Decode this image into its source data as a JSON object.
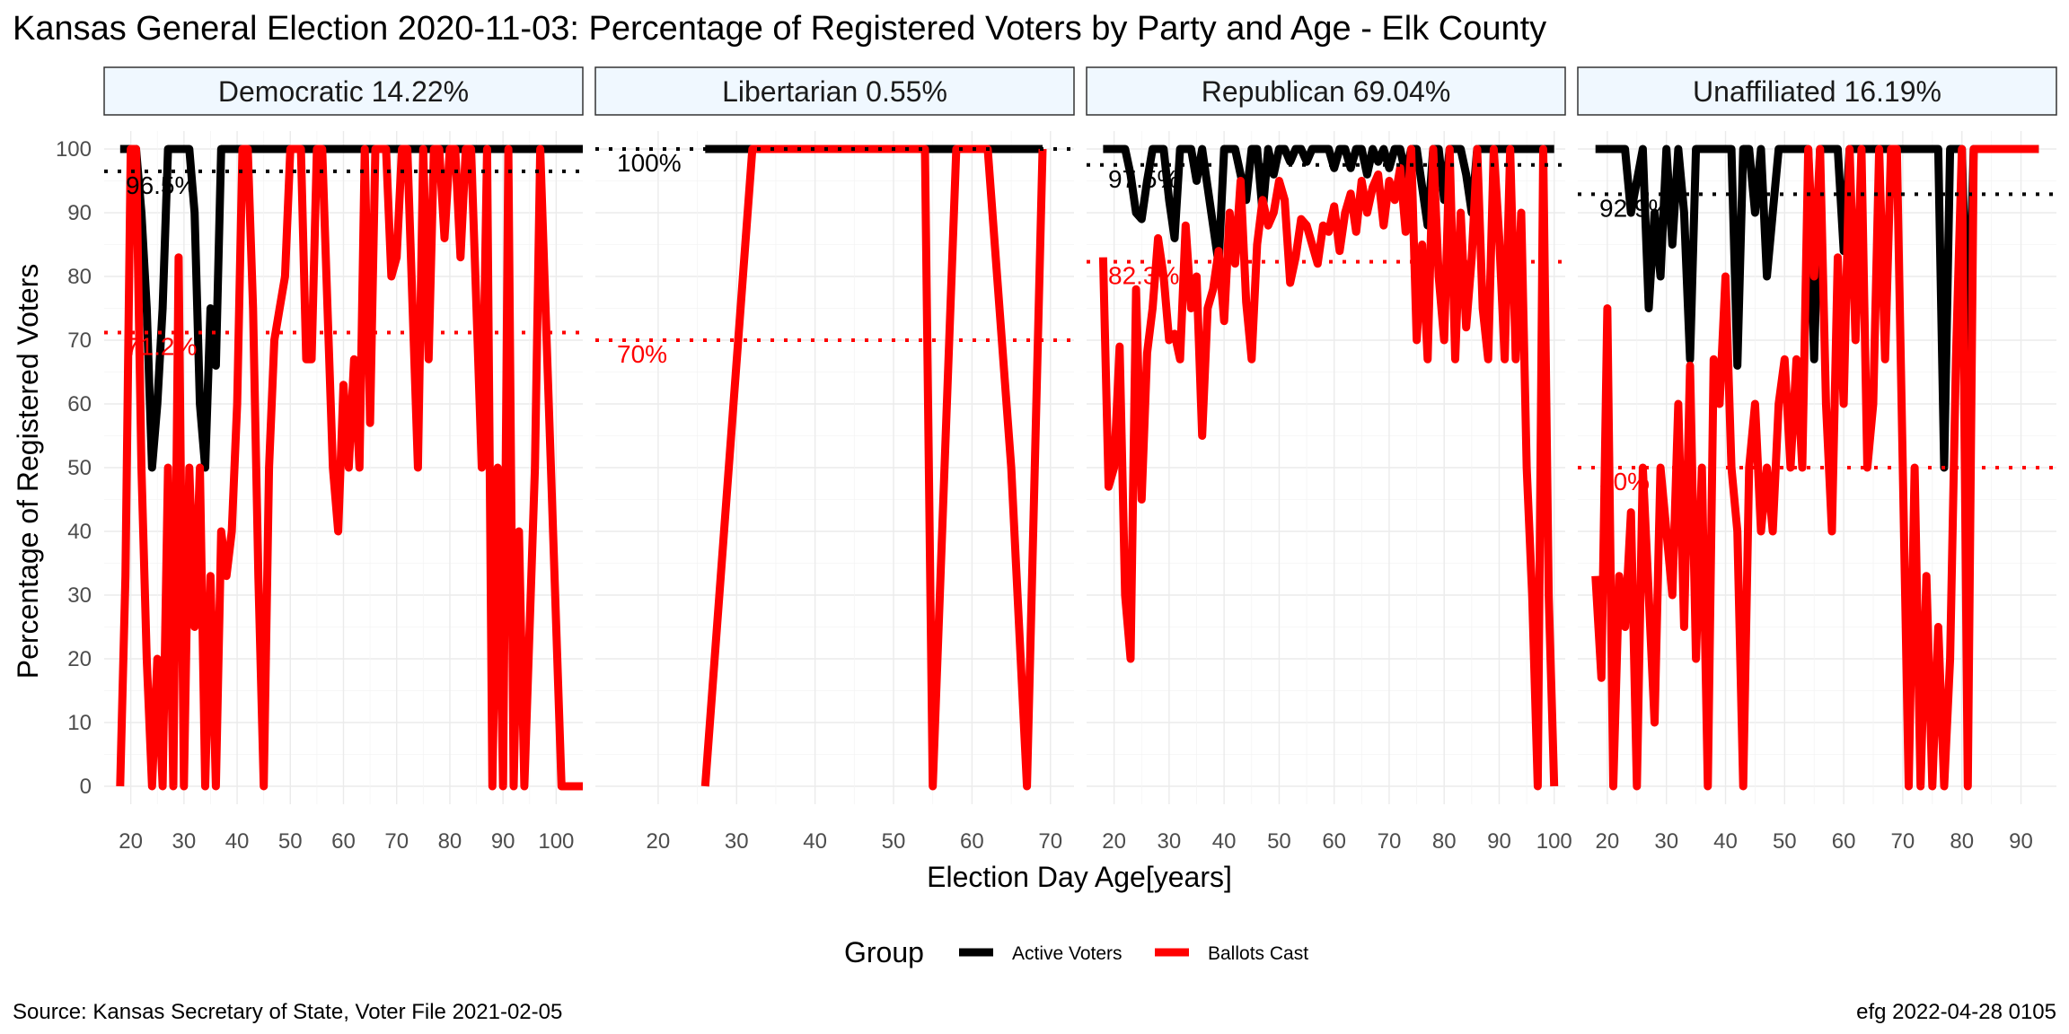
{
  "title": "Kansas General Election 2020-11-03:  Percentage of Registered Voters by Party and Age - Elk County",
  "caption_left": "Source:  Kansas Secretary of State, Voter File  2021-02-05",
  "caption_right": "efg 2022-04-28 0105",
  "colors": {
    "active": "#000000",
    "ballots": "#ff0000",
    "strip_fill": "#f0f8ff",
    "grid": "#ebebeb"
  },
  "chart_data": {
    "type": "line",
    "xlabel": "Election Day Age[years]",
    "ylabel": "Percentage of Registered Voters",
    "ylim": [
      0,
      100
    ],
    "yticks": [
      0,
      10,
      20,
      30,
      40,
      50,
      60,
      70,
      80,
      90,
      100
    ],
    "grid": true,
    "legend": {
      "title": "Group",
      "position": "bottom",
      "entries": [
        "Active Voters",
        "Ballots Cast"
      ]
    },
    "panels": [
      {
        "label": "Democratic 14.22%",
        "xlim": [
          15,
          105
        ],
        "xticks": [
          20,
          30,
          40,
          50,
          60,
          70,
          80,
          90,
          100
        ],
        "active_mean": 96.5,
        "active_mean_label": "96.5%",
        "ballots_mean": 71.2,
        "ballots_mean_label": "71.2%",
        "active_x": [
          18,
          19,
          20,
          21,
          22,
          23,
          24,
          25,
          26,
          27,
          28,
          29,
          30,
          31,
          32,
          33,
          34,
          35,
          36,
          37,
          38,
          39,
          40,
          41,
          42,
          43,
          44,
          45,
          46,
          47,
          48,
          49,
          50,
          51,
          52,
          53,
          54,
          55,
          56,
          57,
          58,
          59,
          60,
          61,
          62,
          63,
          64,
          65,
          66,
          67,
          68,
          69,
          70,
          71,
          72,
          73,
          74,
          75,
          76,
          77,
          78,
          79,
          80,
          81,
          82,
          83,
          84,
          85,
          86,
          87,
          88,
          89,
          90,
          91,
          92,
          93,
          94,
          95,
          96,
          97,
          98,
          99,
          100,
          101,
          102,
          103,
          104,
          105
        ],
        "active_y": [
          100,
          100,
          100,
          100,
          90,
          75,
          50,
          60,
          75,
          100,
          100,
          100,
          100,
          100,
          90,
          60,
          50,
          75,
          66,
          100,
          100,
          100,
          100,
          100,
          100,
          100,
          100,
          100,
          100,
          100,
          100,
          100,
          100,
          100,
          100,
          100,
          100,
          100,
          100,
          100,
          100,
          100,
          100,
          100,
          100,
          100,
          100,
          100,
          100,
          100,
          100,
          100,
          100,
          100,
          100,
          100,
          100,
          100,
          100,
          100,
          100,
          100,
          100,
          100,
          100,
          100,
          100,
          100,
          100,
          100,
          100,
          100,
          100,
          100,
          100,
          100,
          100,
          100,
          100,
          100,
          100,
          100,
          100,
          100,
          100,
          100,
          100,
          100
        ],
        "ballots_x": [
          18,
          19,
          20,
          21,
          22,
          23,
          24,
          25,
          26,
          27,
          28,
          29,
          30,
          31,
          32,
          33,
          34,
          35,
          36,
          37,
          38,
          39,
          40,
          41,
          42,
          43,
          44,
          45,
          46,
          47,
          48,
          49,
          50,
          51,
          52,
          53,
          54,
          55,
          56,
          57,
          58,
          59,
          60,
          61,
          62,
          63,
          64,
          65,
          66,
          67,
          68,
          69,
          70,
          71,
          72,
          73,
          74,
          75,
          76,
          77,
          78,
          79,
          80,
          81,
          82,
          83,
          84,
          85,
          86,
          87,
          88,
          89,
          90,
          91,
          92,
          93,
          94,
          95,
          96,
          97,
          98,
          99,
          100,
          101,
          102,
          103,
          104,
          105
        ],
        "ballots_y": [
          0,
          33,
          100,
          100,
          50,
          20,
          0,
          20,
          0,
          50,
          0,
          83,
          0,
          50,
          25,
          50,
          0,
          33,
          0,
          40,
          33,
          40,
          60,
          100,
          100,
          75,
          33,
          0,
          50,
          70,
          75,
          80,
          100,
          100,
          100,
          67,
          67,
          100,
          100,
          75,
          50,
          40,
          63,
          50,
          67,
          50,
          100,
          57,
          100,
          100,
          100,
          80,
          83,
          100,
          100,
          75,
          50,
          100,
          67,
          100,
          100,
          86,
          100,
          100,
          83,
          100,
          100,
          75,
          50,
          100,
          0,
          50,
          0,
          100,
          0,
          40,
          0,
          25,
          50,
          100,
          75,
          50,
          25,
          0,
          0,
          0,
          0,
          0
        ]
      },
      {
        "label": "Libertarian 0.55%",
        "xlim": [
          12,
          73
        ],
        "xticks": [
          20,
          30,
          40,
          50,
          60,
          70
        ],
        "active_mean": 100,
        "active_mean_label": "100%",
        "ballots_mean": 70,
        "ballots_mean_label": "70%",
        "active_x": [
          26,
          30,
          34,
          40,
          50,
          55,
          58,
          60,
          62,
          66,
          67,
          69
        ],
        "active_y": [
          100,
          100,
          100,
          100,
          100,
          100,
          100,
          100,
          100,
          100,
          100,
          100
        ],
        "ballots_x": [
          26,
          32,
          50,
          54,
          55,
          58,
          60,
          62,
          65,
          67,
          69
        ],
        "ballots_y": [
          0,
          100,
          100,
          100,
          0,
          100,
          100,
          100,
          50,
          0,
          100
        ]
      },
      {
        "label": "Republican 69.04%",
        "xlim": [
          15,
          102
        ],
        "xticks": [
          20,
          30,
          40,
          50,
          60,
          70,
          80,
          90,
          100
        ],
        "active_mean": 97.5,
        "active_mean_label": "97.5%",
        "ballots_mean": 82.3,
        "ballots_mean_label": "82.3%",
        "active_x": [
          18,
          19,
          20,
          21,
          22,
          23,
          24,
          25,
          26,
          27,
          28,
          29,
          30,
          31,
          32,
          33,
          34,
          35,
          36,
          37,
          38,
          39,
          40,
          41,
          42,
          43,
          44,
          45,
          46,
          47,
          48,
          49,
          50,
          51,
          52,
          53,
          54,
          55,
          56,
          57,
          58,
          59,
          60,
          61,
          62,
          63,
          64,
          65,
          66,
          67,
          68,
          69,
          70,
          71,
          72,
          73,
          74,
          75,
          76,
          77,
          78,
          79,
          80,
          81,
          82,
          83,
          84,
          85,
          86,
          87,
          88,
          89,
          90,
          91,
          92,
          93,
          94,
          95,
          96,
          97,
          98,
          99,
          100
        ],
        "active_y": [
          100,
          100,
          100,
          100,
          100,
          96,
          90,
          89,
          95,
          100,
          100,
          100,
          92,
          86,
          100,
          100,
          100,
          95,
          100,
          94,
          88,
          82,
          100,
          100,
          100,
          96,
          92,
          100,
          100,
          90,
          100,
          96,
          100,
          100,
          98,
          100,
          100,
          98,
          100,
          100,
          100,
          100,
          97,
          100,
          100,
          97,
          100,
          100,
          96,
          100,
          98,
          100,
          97,
          100,
          100,
          96,
          100,
          100,
          94,
          88,
          100,
          100,
          92,
          100,
          100,
          100,
          96,
          90,
          100,
          100,
          100,
          100,
          100,
          100,
          100,
          100,
          100,
          100,
          100,
          100,
          100,
          100,
          100
        ],
        "ballots_x": [
          18,
          19,
          20,
          21,
          22,
          23,
          24,
          25,
          26,
          27,
          28,
          29,
          30,
          31,
          32,
          33,
          34,
          35,
          36,
          37,
          38,
          39,
          40,
          41,
          42,
          43,
          44,
          45,
          46,
          47,
          48,
          49,
          50,
          51,
          52,
          53,
          54,
          55,
          56,
          57,
          58,
          59,
          60,
          61,
          62,
          63,
          64,
          65,
          66,
          67,
          68,
          69,
          70,
          71,
          72,
          73,
          74,
          75,
          76,
          77,
          78,
          79,
          80,
          81,
          82,
          83,
          84,
          85,
          86,
          87,
          88,
          89,
          90,
          91,
          92,
          93,
          94,
          95,
          96,
          97,
          98,
          99,
          100
        ],
        "ballots_y": [
          83,
          47,
          50,
          69,
          30,
          20,
          78,
          45,
          68,
          75,
          86,
          80,
          70,
          71,
          67,
          88,
          75,
          80,
          55,
          75,
          78,
          84,
          73,
          90,
          82,
          95,
          76,
          67,
          85,
          92,
          88,
          90,
          95,
          92,
          79,
          83,
          89,
          88,
          85,
          82,
          88,
          87,
          91,
          84,
          90,
          93,
          87,
          95,
          90,
          94,
          96,
          88,
          95,
          92,
          97,
          87,
          100,
          70,
          85,
          67,
          100,
          80,
          70,
          100,
          67,
          90,
          72,
          83,
          100,
          75,
          67,
          100,
          86,
          67,
          100,
          67,
          90,
          50,
          30,
          0,
          100,
          30,
          0
        ]
      },
      {
        "label": "Unaffiliated 16.19%",
        "xlim": [
          15,
          96
        ],
        "xticks": [
          20,
          30,
          40,
          50,
          60,
          70,
          80,
          90
        ],
        "active_mean": 92.9,
        "active_mean_label": "92.9%",
        "ballots_mean": 50,
        "ballots_mean_label": "50%",
        "active_x": [
          18,
          19,
          20,
          21,
          22,
          23,
          24,
          25,
          26,
          27,
          28,
          29,
          30,
          31,
          32,
          33,
          34,
          35,
          36,
          37,
          38,
          39,
          40,
          41,
          42,
          43,
          44,
          45,
          46,
          47,
          48,
          49,
          50,
          51,
          52,
          53,
          54,
          55,
          56,
          57,
          58,
          59,
          60,
          61,
          62,
          63,
          64,
          65,
          66,
          67,
          68,
          69,
          70,
          71,
          72,
          73,
          74,
          75,
          76,
          77,
          78,
          79,
          80,
          81,
          82,
          83,
          84,
          85,
          86,
          87,
          88,
          89,
          90,
          91,
          92,
          93
        ],
        "active_y": [
          100,
          100,
          100,
          100,
          100,
          100,
          90,
          95,
          100,
          75,
          90,
          80,
          100,
          85,
          100,
          90,
          67,
          100,
          100,
          100,
          100,
          100,
          100,
          100,
          66,
          100,
          100,
          90,
          100,
          80,
          90,
          100,
          100,
          100,
          100,
          100,
          100,
          67,
          100,
          100,
          100,
          100,
          84,
          100,
          100,
          100,
          100,
          100,
          100,
          100,
          100,
          100,
          100,
          100,
          100,
          100,
          100,
          100,
          100,
          50,
          100,
          100,
          100,
          67,
          100,
          100,
          100,
          100,
          100,
          100,
          100,
          100,
          100,
          100,
          100,
          100
        ],
        "ballots_x": [
          18,
          19,
          20,
          21,
          22,
          23,
          24,
          25,
          26,
          27,
          28,
          29,
          30,
          31,
          32,
          33,
          34,
          35,
          36,
          37,
          38,
          39,
          40,
          41,
          42,
          43,
          44,
          45,
          46,
          47,
          48,
          49,
          50,
          51,
          52,
          53,
          54,
          55,
          56,
          57,
          58,
          59,
          60,
          61,
          62,
          63,
          64,
          65,
          66,
          67,
          68,
          69,
          70,
          71,
          72,
          73,
          74,
          75,
          76,
          77,
          78,
          79,
          80,
          81,
          82,
          83,
          84,
          85,
          86,
          87,
          88,
          89,
          90,
          91,
          92,
          93
        ],
        "ballots_y": [
          33,
          17,
          75,
          0,
          33,
          25,
          43,
          0,
          50,
          30,
          10,
          50,
          40,
          30,
          60,
          25,
          66,
          20,
          50,
          0,
          67,
          60,
          80,
          50,
          40,
          0,
          50,
          60,
          40,
          50,
          40,
          60,
          67,
          50,
          67,
          50,
          100,
          80,
          100,
          60,
          40,
          83,
          60,
          100,
          70,
          100,
          50,
          60,
          100,
          67,
          100,
          100,
          50,
          0,
          50,
          0,
          33,
          0,
          25,
          0,
          20,
          67,
          100,
          0,
          100,
          100,
          100,
          100,
          100,
          100,
          100,
          100,
          100,
          100,
          100,
          100
        ]
      }
    ]
  }
}
